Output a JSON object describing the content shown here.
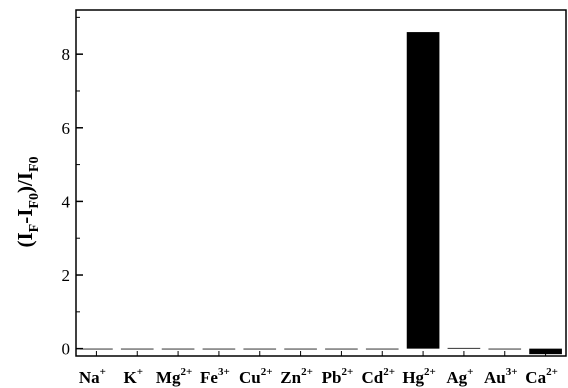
{
  "chart_data": {
    "type": "bar",
    "title": "",
    "xlabel": "",
    "ylabel": "(I_F-I_F0)/I_F0",
    "ylabel_parts": [
      {
        "text": "(I",
        "sub": false
      },
      {
        "text": "F",
        "sub": true
      },
      {
        "text": "-I",
        "sub": false
      },
      {
        "text": "F0",
        "sub": true
      },
      {
        "text": ")/I",
        "sub": false
      },
      {
        "text": "F0",
        "sub": true
      }
    ],
    "categories": [
      {
        "base": "Na",
        "charge": "+"
      },
      {
        "base": "K",
        "charge": "+"
      },
      {
        "base": "Mg",
        "charge": "2+"
      },
      {
        "base": "Fe",
        "charge": "3+"
      },
      {
        "base": "Cu",
        "charge": "2+"
      },
      {
        "base": "Zn",
        "charge": "2+"
      },
      {
        "base": "Pb",
        "charge": "2+"
      },
      {
        "base": "Cd",
        "charge": "2+"
      },
      {
        "base": "Hg",
        "charge": "2+"
      },
      {
        "base": "Ag",
        "charge": "+"
      },
      {
        "base": "Au",
        "charge": "3+"
      },
      {
        "base": "Ca",
        "charge": "2+"
      }
    ],
    "values": [
      0,
      0,
      0,
      0,
      0,
      0,
      0,
      0,
      8.6,
      0.02,
      0,
      -0.15
    ],
    "ylim": [
      -0.2,
      9.2
    ],
    "yticks": [
      0,
      2,
      4,
      6,
      8
    ],
    "bar_color": "#000000",
    "grid": false,
    "legend": false
  }
}
